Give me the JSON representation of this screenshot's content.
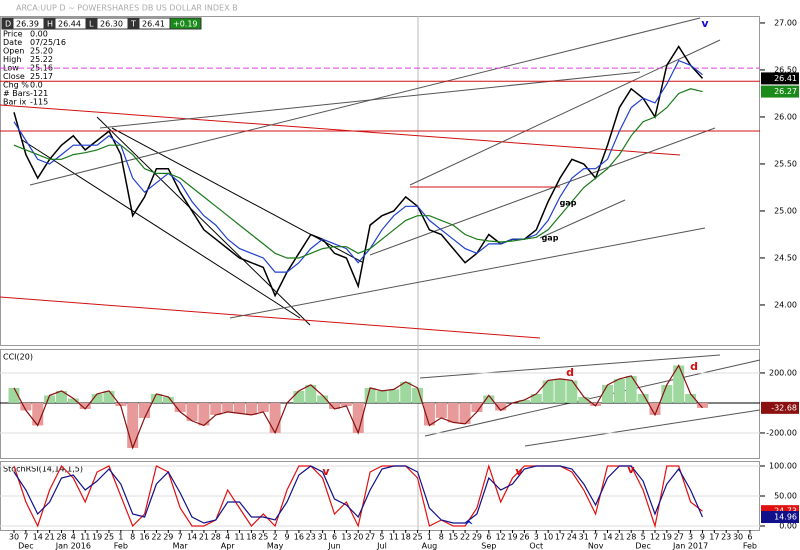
{
  "header": {
    "title": "ARCA:UUP D ~ POWERSHARES DB US DOLLAR INDEX B",
    "quote": [
      "D",
      "26.39",
      "H",
      "26.44",
      "L",
      "26.30",
      "T",
      "26.41",
      "+0.19"
    ]
  },
  "info_panel": [
    [
      "Price",
      "0.00"
    ],
    [
      "Date",
      "07/25/16"
    ],
    [
      "Open",
      "25.20"
    ],
    [
      "High",
      "25.22"
    ],
    [
      "Low",
      "25.16"
    ],
    [
      "Close",
      "25.17"
    ],
    [
      "Chg %",
      "0.0"
    ],
    [
      "# Bars",
      "-121"
    ],
    [
      "Bar ix",
      "-115"
    ]
  ],
  "chart_data": [
    {
      "type": "line",
      "ylim": [
        23.574,
        27.074
      ],
      "yticks": [
        {
          "value": 27,
          "label": "27.00"
        },
        {
          "value": 26.5,
          "label": "26.50"
        },
        {
          "value": 26,
          "label": "26.00"
        },
        {
          "value": 25.5,
          "label": "25.50"
        },
        {
          "value": 25,
          "label": "25.00"
        },
        {
          "value": 24.5,
          "label": "24.50"
        },
        {
          "value": 24,
          "label": "24.00"
        }
      ],
      "series": [
        {
          "name": "Price",
          "color": "#000000",
          "values": [
            26.05,
            25.6,
            25.35,
            25.55,
            25.7,
            25.8,
            25.65,
            25.75,
            25.85,
            25.6,
            24.95,
            25.15,
            25.45,
            25.45,
            25.2,
            25.0,
            24.8,
            24.7,
            24.6,
            24.5,
            24.45,
            24.4,
            24.1,
            24.35,
            24.55,
            24.75,
            24.7,
            24.55,
            24.5,
            24.2,
            24.85,
            24.95,
            25.0,
            25.15,
            25.05,
            24.8,
            24.75,
            24.6,
            24.45,
            24.55,
            24.75,
            24.65,
            24.7,
            24.7,
            24.8,
            25.1,
            25.35,
            25.55,
            25.5,
            25.35,
            25.7,
            26.1,
            26.3,
            26.2,
            26.0,
            26.55,
            26.75,
            26.55,
            26.41,
            null,
            null,
            null,
            null
          ]
        },
        {
          "name": "MA short",
          "color": "#1f3fd0",
          "values": [
            25.95,
            25.75,
            25.55,
            25.5,
            25.6,
            25.7,
            25.7,
            25.7,
            25.8,
            25.7,
            25.35,
            25.2,
            25.3,
            25.4,
            25.3,
            25.1,
            24.95,
            24.85,
            24.7,
            24.6,
            24.55,
            24.5,
            24.35,
            24.35,
            24.45,
            24.6,
            24.7,
            24.65,
            24.6,
            24.45,
            24.6,
            24.8,
            24.95,
            25.05,
            25.05,
            24.9,
            24.8,
            24.7,
            24.6,
            24.55,
            24.65,
            24.65,
            24.7,
            24.7,
            24.75,
            24.9,
            25.15,
            25.35,
            25.45,
            25.45,
            25.55,
            25.85,
            26.1,
            26.2,
            26.15,
            26.35,
            26.6,
            26.55,
            26.45,
            null,
            null,
            null,
            null
          ]
        },
        {
          "name": "MA long",
          "color": "#1a7a1a",
          "values": [
            25.7,
            25.65,
            25.6,
            25.55,
            25.55,
            25.6,
            25.62,
            25.65,
            25.7,
            25.7,
            25.6,
            25.45,
            25.4,
            25.4,
            25.35,
            25.25,
            25.15,
            25.05,
            24.95,
            24.85,
            24.75,
            24.65,
            24.55,
            24.5,
            24.5,
            24.55,
            24.6,
            24.62,
            24.62,
            24.55,
            24.6,
            24.7,
            24.8,
            24.9,
            24.95,
            24.95,
            24.9,
            24.85,
            24.75,
            24.7,
            24.68,
            24.67,
            24.68,
            24.7,
            24.72,
            24.8,
            24.95,
            25.1,
            25.25,
            25.35,
            25.45,
            25.6,
            25.8,
            25.95,
            26.0,
            26.1,
            26.25,
            26.3,
            26.27,
            null,
            null,
            null,
            null
          ]
        }
      ],
      "reference_lines": [
        {
          "value": 26.52,
          "color": "#e040e0",
          "dashed": true
        },
        {
          "value": 26.38,
          "color": "#d01010",
          "dashed": false
        },
        {
          "value": 25.85,
          "color": "#d01010",
          "dashed": false
        }
      ],
      "value_boxes": [
        {
          "value": 26.41,
          "label": "26.41",
          "color": "#000000"
        },
        {
          "value": 26.27,
          "label": "26.27",
          "color": "#1a8a1a"
        }
      ],
      "annotations": [
        {
          "text": "v",
          "color": "#1010d0"
        },
        {
          "text": "gap",
          "color": "#000000"
        },
        {
          "text": "gap",
          "color": "#000000"
        }
      ]
    },
    {
      "type": "area",
      "title": "CCI(20)",
      "ylim": [
        -367,
        353
      ],
      "yticks": [
        {
          "value": 200,
          "label": "200.00"
        },
        {
          "value": -200,
          "label": "-200.00"
        }
      ],
      "fill_positive": "#9fd89f",
      "fill_negative": "#e89a9a",
      "series": [
        {
          "name": "CCI",
          "color": "#8b1010",
          "values": [
            100,
            -50,
            -150,
            50,
            80,
            30,
            -40,
            60,
            80,
            -20,
            -300,
            -100,
            60,
            40,
            -60,
            -120,
            -150,
            -80,
            -60,
            -70,
            -80,
            -60,
            -200,
            0,
            80,
            120,
            50,
            -40,
            -20,
            -200,
            100,
            80,
            90,
            140,
            100,
            -150,
            -100,
            -130,
            -140,
            -60,
            50,
            -50,
            0,
            20,
            60,
            150,
            160,
            150,
            40,
            -20,
            120,
            160,
            180,
            60,
            -80,
            120,
            250,
            60,
            -32.68,
            null,
            null,
            null,
            null
          ]
        }
      ],
      "value_boxes": [
        {
          "value": -32.68,
          "label": "-32.68",
          "color": "#8b1010"
        }
      ],
      "annotations": [
        {
          "text": "d",
          "color": "#d01010"
        },
        {
          "text": "d",
          "color": "#d01010"
        }
      ]
    },
    {
      "type": "line",
      "title": "StochRSI(14,14,1,5)",
      "ylim": [
        -6.67,
        106.67
      ],
      "yticks": [
        {
          "value": 100,
          "label": "100.00"
        },
        {
          "value": 50,
          "label": "50.00"
        },
        {
          "value": 0,
          "label": "0.00"
        }
      ],
      "series": [
        {
          "name": "StochRSI",
          "color": "#e01010",
          "values": [
            100,
            40,
            0,
            60,
            100,
            80,
            40,
            90,
            100,
            50,
            0,
            20,
            100,
            90,
            30,
            0,
            0,
            10,
            60,
            30,
            0,
            20,
            0,
            60,
            100,
            100,
            80,
            20,
            40,
            0,
            90,
            100,
            100,
            100,
            80,
            0,
            10,
            0,
            0,
            30,
            100,
            40,
            80,
            100,
            100,
            100,
            100,
            90,
            60,
            20,
            100,
            100,
            100,
            60,
            0,
            100,
            100,
            40,
            24.73,
            null,
            null,
            null,
            null
          ]
        },
        {
          "name": "Signal",
          "color": "#10108b",
          "values": [
            90,
            60,
            20,
            40,
            80,
            85,
            60,
            75,
            95,
            70,
            20,
            15,
            70,
            90,
            55,
            15,
            5,
            10,
            40,
            40,
            15,
            15,
            10,
            40,
            85,
            100,
            90,
            45,
            35,
            15,
            60,
            95,
            100,
            100,
            90,
            30,
            10,
            5,
            5,
            20,
            80,
            60,
            70,
            95,
            100,
            100,
            100,
            95,
            70,
            35,
            80,
            100,
            100,
            75,
            20,
            70,
            95,
            60,
            14.96,
            null,
            null,
            null,
            null
          ]
        }
      ],
      "value_boxes": [
        {
          "value": 24.73,
          "label": "24.73",
          "color": "#e01010"
        },
        {
          "value": 14.96,
          "label": "14.96",
          "color": "#10108b"
        }
      ],
      "annotations": [
        {
          "text": "v",
          "color": "#d01010"
        },
        {
          "text": "v",
          "color": "#d01010"
        },
        {
          "text": "v",
          "color": "#d01010"
        },
        {
          "text": "^",
          "color": "#1010d0"
        }
      ],
      "categories": [
        "30",
        "7",
        "14",
        "21",
        "28",
        "4",
        "11",
        "19",
        "25",
        "1",
        "8",
        "16",
        "22",
        "29",
        "7",
        "14",
        "21",
        "28",
        "4",
        "11",
        "18",
        "25",
        "2",
        "9",
        "16",
        "23",
        "31",
        "6",
        "13",
        "20",
        "27",
        "5",
        "11",
        "18",
        "25",
        "1",
        "8",
        "15",
        "22",
        "29",
        "6",
        "12",
        "19",
        "26",
        "3",
        "10",
        "17",
        "24",
        "31",
        "7",
        "14",
        "21",
        "28",
        "5",
        "12",
        "19",
        "27",
        "3",
        "9",
        "17",
        "23",
        "30",
        "6"
      ],
      "months": [
        "Dec",
        "Jan 2016",
        "Feb",
        "Mar",
        "Apr",
        "May",
        "Jun",
        "Jul",
        "Aug",
        "Sep",
        "Oct",
        "Nov",
        "Dec",
        "Jan 2017",
        "Feb"
      ]
    }
  ]
}
